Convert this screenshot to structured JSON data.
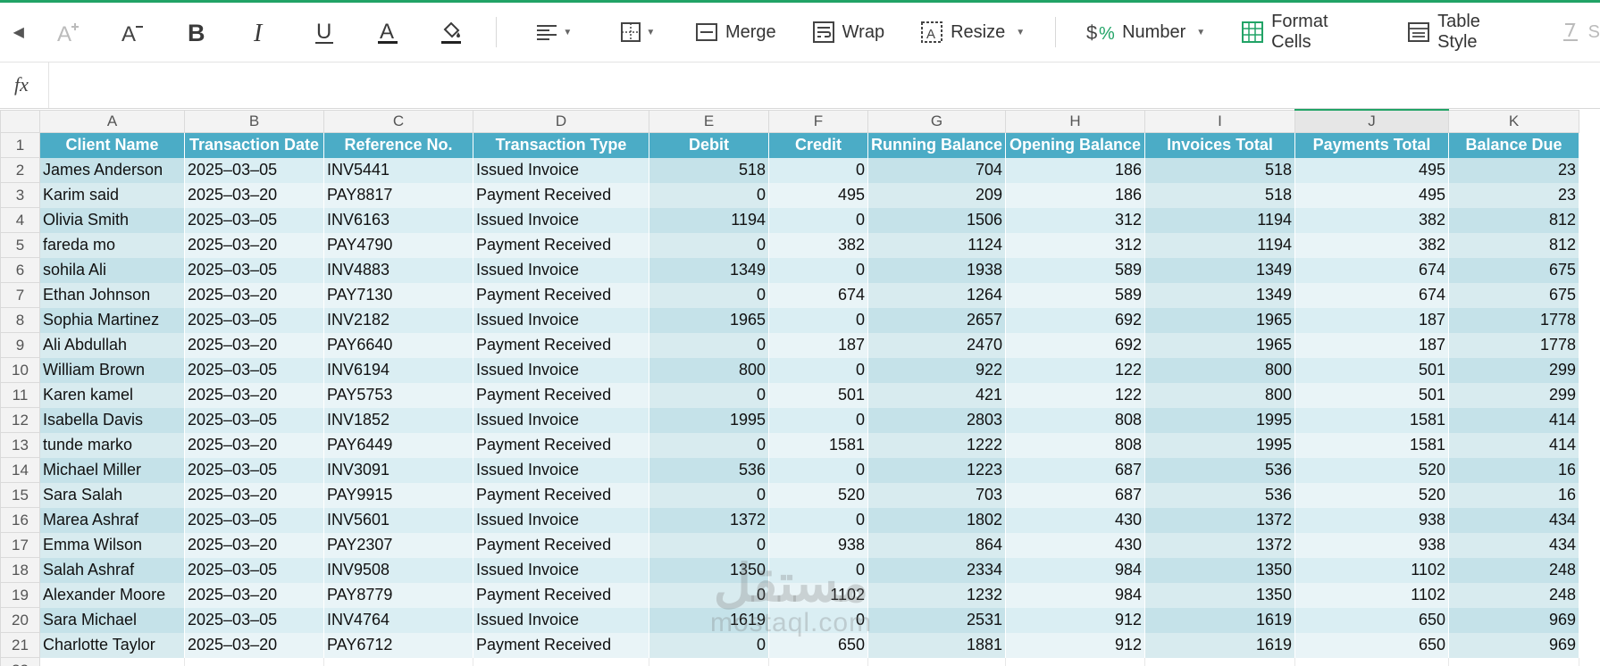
{
  "toolbar": {
    "merge_label": "Merge",
    "wrap_label": "Wrap",
    "resize_label": "Resize",
    "number_label": "Number",
    "format_cells_label": "Format Cells",
    "table_style_label": "Table Style",
    "cut_label": "S"
  },
  "formula_bar": {
    "fx": "fx"
  },
  "sheet": {
    "columns": [
      "A",
      "B",
      "C",
      "D",
      "E",
      "F",
      "G",
      "H",
      "I",
      "J",
      "K"
    ],
    "selected_column": "J",
    "headers": [
      "Client Name",
      "Transaction Date",
      "Reference No.",
      "Transaction Type",
      "Debit",
      "Credit",
      "Running Balance",
      "Opening Balance",
      "Invoices Total",
      "Payments Total",
      "Balance Due"
    ],
    "rows": [
      [
        "James Anderson",
        "2025–03–05",
        "INV5441",
        "Issued Invoice",
        "518",
        "0",
        "704",
        "186",
        "518",
        "495",
        "23"
      ],
      [
        "Karim said",
        "2025–03–20",
        "PAY8817",
        "Payment Received",
        "0",
        "495",
        "209",
        "186",
        "518",
        "495",
        "23"
      ],
      [
        "Olivia Smith",
        "2025–03–05",
        "INV6163",
        "Issued Invoice",
        "1194",
        "0",
        "1506",
        "312",
        "1194",
        "382",
        "812"
      ],
      [
        "fareda mo",
        "2025–03–20",
        "PAY4790",
        "Payment Received",
        "0",
        "382",
        "1124",
        "312",
        "1194",
        "382",
        "812"
      ],
      [
        "sohila Ali",
        "2025–03–05",
        "INV4883",
        "Issued Invoice",
        "1349",
        "0",
        "1938",
        "589",
        "1349",
        "674",
        "675"
      ],
      [
        "Ethan Johnson",
        "2025–03–20",
        "PAY7130",
        "Payment Received",
        "0",
        "674",
        "1264",
        "589",
        "1349",
        "674",
        "675"
      ],
      [
        "Sophia Martinez",
        "2025–03–05",
        "INV2182",
        "Issued Invoice",
        "1965",
        "0",
        "2657",
        "692",
        "1965",
        "187",
        "1778"
      ],
      [
        "Ali Abdullah",
        "2025–03–20",
        "PAY6640",
        "Payment Received",
        "0",
        "187",
        "2470",
        "692",
        "1965",
        "187",
        "1778"
      ],
      [
        "William Brown",
        "2025–03–05",
        "INV6194",
        "Issued Invoice",
        "800",
        "0",
        "922",
        "122",
        "800",
        "501",
        "299"
      ],
      [
        "Karen kamel",
        "2025–03–20",
        "PAY5753",
        "Payment Received",
        "0",
        "501",
        "421",
        "122",
        "800",
        "501",
        "299"
      ],
      [
        "Isabella Davis",
        "2025–03–05",
        "INV1852",
        "Issued Invoice",
        "1995",
        "0",
        "2803",
        "808",
        "1995",
        "1581",
        "414"
      ],
      [
        "tunde marko",
        "2025–03–20",
        "PAY6449",
        "Payment Received",
        "0",
        "1581",
        "1222",
        "808",
        "1995",
        "1581",
        "414"
      ],
      [
        "Michael Miller",
        "2025–03–05",
        "INV3091",
        "Issued Invoice",
        "536",
        "0",
        "1223",
        "687",
        "536",
        "520",
        "16"
      ],
      [
        "Sara Salah",
        "2025–03–20",
        "PAY9915",
        "Payment Received",
        "0",
        "520",
        "703",
        "687",
        "536",
        "520",
        "16"
      ],
      [
        "Marea Ashraf",
        "2025–03–05",
        "INV5601",
        "Issued Invoice",
        "1372",
        "0",
        "1802",
        "430",
        "1372",
        "938",
        "434"
      ],
      [
        "Emma Wilson",
        "2025–03–20",
        "PAY2307",
        "Payment Received",
        "0",
        "938",
        "864",
        "430",
        "1372",
        "938",
        "434"
      ],
      [
        "Salah Ashraf",
        "2025–03–05",
        "INV9508",
        "Issued Invoice",
        "1350",
        "0",
        "2334",
        "984",
        "1350",
        "1102",
        "248"
      ],
      [
        "Alexander Moore",
        "2025–03–20",
        "PAY8779",
        "Payment Received",
        "0",
        "1102",
        "1232",
        "984",
        "1350",
        "1102",
        "248"
      ],
      [
        "Sara Michael",
        "2025–03–05",
        "INV4764",
        "Issued Invoice",
        "1619",
        "0",
        "2531",
        "912",
        "1619",
        "650",
        "969"
      ],
      [
        "Charlotte Taylor",
        "2025–03–20",
        "PAY6712",
        "Payment Received",
        "0",
        "650",
        "1881",
        "912",
        "1619",
        "650",
        "969"
      ]
    ],
    "blank_row_number": "22"
  },
  "watermark": {
    "arabic": "مستقل",
    "latin": "mostaql.com"
  },
  "colors": {
    "accent": "#21a366",
    "header_fill": "#4bacc6",
    "band_a": "#daeef3",
    "band_b": "#e9f4f7"
  }
}
